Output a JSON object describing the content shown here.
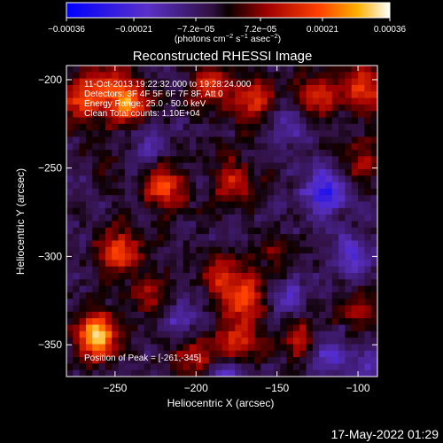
{
  "chart_data": {
    "type": "heatmap",
    "title": "Reconstructed RHESSI Image",
    "xlabel": "Heliocentric X (arcsec)",
    "ylabel": "Heliocentric Y (arcsec)",
    "x_range": [
      -280,
      -88
    ],
    "y_range": [
      -368,
      -192
    ],
    "x_ticks": [
      -250,
      -200,
      -150,
      -100
    ],
    "x_tick_labels": [
      "−250",
      "−200",
      "−150",
      "−100"
    ],
    "y_ticks": [
      -200,
      -250,
      -300,
      -350
    ],
    "y_tick_labels": [
      "−200",
      "−250",
      "−300",
      "−350"
    ],
    "colorbar": {
      "range": [
        -0.00036,
        0.00036
      ],
      "ticks": [
        -0.00036,
        -0.00021,
        -7.2e-05,
        7.2e-05,
        0.00021,
        0.00036
      ],
      "tick_labels": [
        "−0.00036",
        "−0.00021",
        "−7.2e−05",
        "7.2e−05",
        "0.00021",
        "0.00036"
      ],
      "units_parts": {
        "a": "(photons cm",
        "b": "−2",
        "c": " s",
        "d": "−1",
        "e": " asec",
        "f": "−2",
        "g": ")"
      }
    },
    "annotations": [
      "11-Oct-2013 19:22:32.000 to 19:28:24.000",
      "Detectors: 3F 4F 5F 6F 7F 8F, Att 0",
      "Energy Range: 25.0 - 50.0 keV",
      "Clean     Total counts: 1.10E+04"
    ],
    "peak_label": "Position of Peak = [-261,-345]",
    "peak": [
      -261,
      -345
    ],
    "grid": false,
    "hotspots": [
      {
        "x": -261,
        "y": -345,
        "v": 0.00036
      },
      {
        "x": -242,
        "y": -213,
        "v": 0.00026
      },
      {
        "x": -272,
        "y": -212,
        "v": 0.0002
      },
      {
        "x": -247,
        "y": -297,
        "v": 0.00021
      },
      {
        "x": -220,
        "y": -260,
        "v": 0.00024
      },
      {
        "x": -192,
        "y": -205,
        "v": 0.00018
      },
      {
        "x": -166,
        "y": -212,
        "v": 0.00021
      },
      {
        "x": -176,
        "y": -257,
        "v": 0.00016
      },
      {
        "x": -183,
        "y": -312,
        "v": 0.00018
      },
      {
        "x": -168,
        "y": -325,
        "v": 0.00022
      },
      {
        "x": -174,
        "y": -349,
        "v": 0.0002
      },
      {
        "x": -200,
        "y": -355,
        "v": 0.00017
      },
      {
        "x": -125,
        "y": -210,
        "v": 0.00019
      },
      {
        "x": -96,
        "y": -205,
        "v": 0.00022
      },
      {
        "x": -97,
        "y": -246,
        "v": 0.00015
      },
      {
        "x": -100,
        "y": -330,
        "v": 0.00012
      },
      {
        "x": -258,
        "y": -252,
        "v": 0.00012
      },
      {
        "x": -255,
        "y": -203,
        "v": 0.00015
      },
      {
        "x": -136,
        "y": -346,
        "v": 0.00015
      },
      {
        "x": -228,
        "y": -322,
        "v": 0.00012
      },
      {
        "x": -150,
        "y": -300,
        "v": 0.0001
      }
    ],
    "coldspots": [
      {
        "x": -120,
        "y": -263,
        "v": -0.00024
      },
      {
        "x": -103,
        "y": -300,
        "v": -0.00015
      },
      {
        "x": -145,
        "y": -325,
        "v": -0.00014
      },
      {
        "x": -183,
        "y": -368,
        "v": -0.00016
      },
      {
        "x": -208,
        "y": -335,
        "v": -0.00012
      },
      {
        "x": -262,
        "y": -255,
        "v": -0.0001
      },
      {
        "x": -140,
        "y": -225,
        "v": -0.00012
      },
      {
        "x": -118,
        "y": -355,
        "v": -0.00014
      },
      {
        "x": -228,
        "y": -238,
        "v": -0.0001
      },
      {
        "x": -95,
        "y": -365,
        "v": -0.00012
      }
    ]
  },
  "footer": {
    "timestamp": "17-May-2022 01:29"
  }
}
